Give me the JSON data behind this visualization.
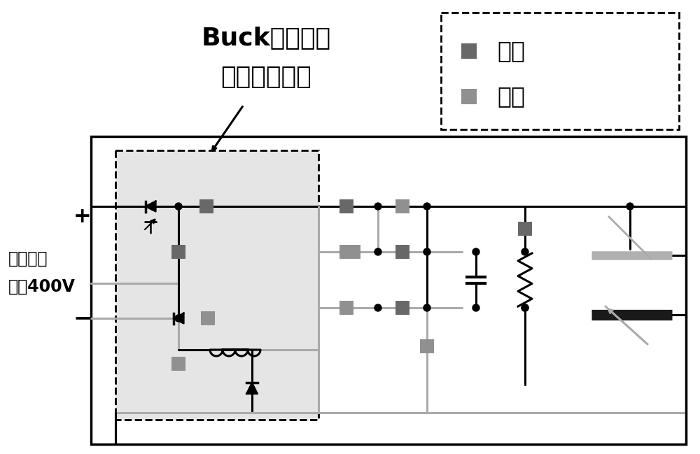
{
  "bg": "#ffffff",
  "black": "#000000",
  "gray": "#aaaaaa",
  "dgray": "#777777",
  "sw_dark": "#686868",
  "sw_light": "#909090",
  "leg_on": "开通",
  "leg_off": "关断",
  "title1": "Buck型大功率",
  "title2": "直流变换电路",
  "src1": "家用直流",
  "src2": "电源400V",
  "plus": "+",
  "minus": "−"
}
